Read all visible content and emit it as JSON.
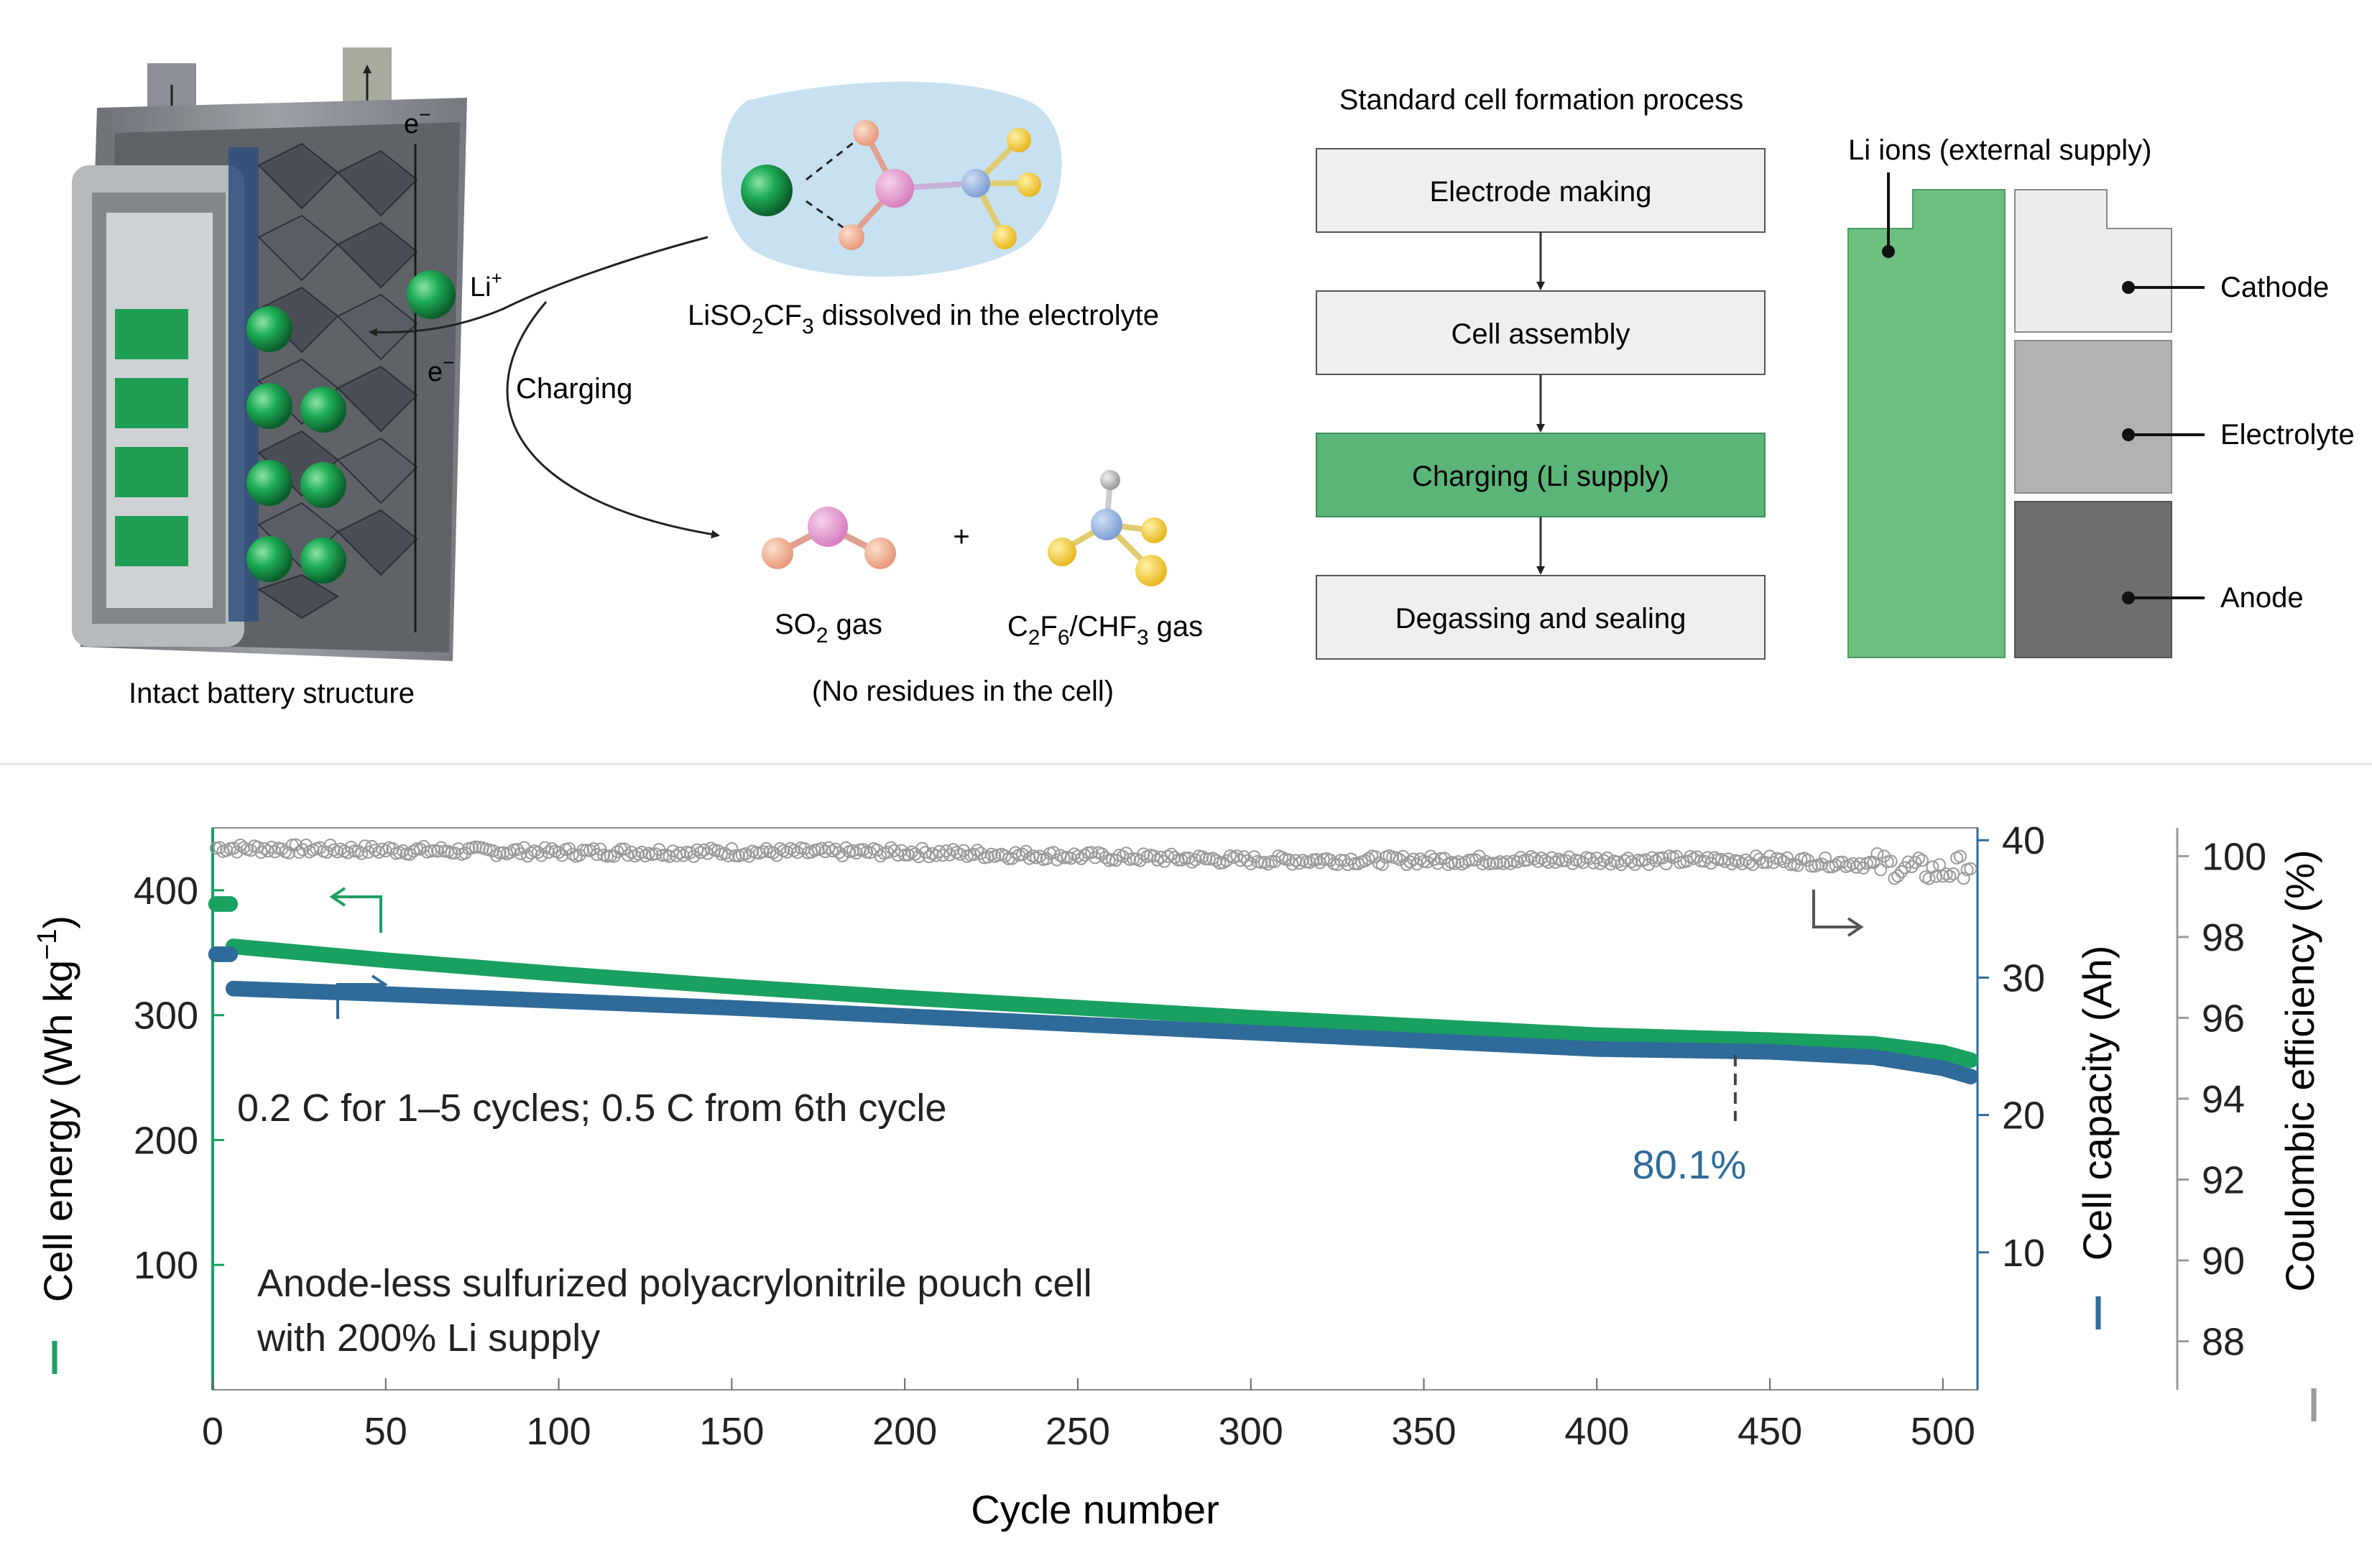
{
  "schematic": {
    "battery_caption": "Intact battery structure",
    "electron_top": "e",
    "electron_bottom": "e",
    "electron_sup": "−",
    "li_label": "Li",
    "li_sup": "+",
    "charging_label": "Charging",
    "salt_caption": {
      "p1": "LiSO",
      "s1": "2",
      "p2": "CF",
      "s2": "3",
      "p3": " dissolved in the electrolyte"
    },
    "plus_sign": "+",
    "so2_caption": {
      "p1": "SO",
      "s1": "2",
      "p2": " gas"
    },
    "cf_caption": {
      "p1": "C",
      "s1": "2",
      "p2": "F",
      "s2": "6",
      "p3": "/CHF",
      "s3": "3",
      "p4": " gas"
    },
    "no_residue_caption": "(No residues in the cell)"
  },
  "flowchart": {
    "title": "Standard cell formation process",
    "steps": [
      "Electrode making",
      "Cell assembly",
      "Charging (Li supply)",
      "Degassing and sealing"
    ],
    "highlight_color": "#5bb578"
  },
  "cell_stack": {
    "supply_label": "Li ions (external supply)",
    "layers": [
      "Cathode",
      "Electrolyte",
      "Anode"
    ],
    "colors": {
      "lithium": "#6cc07f",
      "cathode": "#ececec",
      "electrolyte": "#b2b2b2",
      "anode": "#6e6e6e"
    }
  },
  "chart_data": {
    "type": "scatter",
    "xlabel": "Cycle number",
    "x_ticks": [
      0,
      50,
      100,
      150,
      200,
      250,
      300,
      350,
      400,
      450,
      500
    ],
    "xlim": [
      0,
      510
    ],
    "axes": {
      "energy": {
        "label": "Cell energy (Wh kg",
        "label_sup": "−1",
        "label_end": ")",
        "ylim": [
          0,
          450
        ],
        "ticks": [
          100,
          200,
          300,
          400
        ],
        "color": "#1aa060"
      },
      "capacity": {
        "label": "Cell capacity (Ah)",
        "ylim": [
          0,
          40.9
        ],
        "ticks": [
          10,
          20,
          30,
          40
        ],
        "color": "#2e6b9a"
      },
      "ce": {
        "label": "Coulombic efficiency (%)",
        "ylim": [
          86.8,
          100.7
        ],
        "ticks": [
          88,
          90,
          92,
          94,
          96,
          98,
          100
        ],
        "color": "#9a9a9a"
      }
    },
    "series": [
      {
        "name": "Cell energy",
        "axis": "energy",
        "color": "#1aa060",
        "x": [
          1,
          5,
          6,
          50,
          100,
          150,
          200,
          250,
          300,
          350,
          400,
          450,
          480,
          500,
          508
        ],
        "y": [
          389,
          389,
          355,
          344,
          333,
          323,
          314,
          306,
          298,
          291,
          284,
          280,
          277,
          270,
          264
        ]
      },
      {
        "name": "Cell capacity",
        "axis": "capacity",
        "color": "#2e6b9a",
        "x": [
          1,
          5,
          6,
          50,
          100,
          150,
          200,
          250,
          300,
          350,
          400,
          450,
          480,
          500,
          508
        ],
        "y": [
          31.7,
          31.7,
          29.2,
          28.8,
          28.3,
          27.8,
          27.2,
          26.6,
          26.0,
          25.4,
          24.8,
          24.6,
          24.2,
          23.4,
          22.8
        ]
      },
      {
        "name": "Coulombic efficiency",
        "axis": "ce",
        "color": "#9a9a9a",
        "x": [
          1,
          100,
          200,
          300,
          400,
          450,
          480,
          500,
          508
        ],
        "y": [
          100.2,
          100.1,
          100.1,
          99.9,
          99.9,
          99.9,
          99.8,
          99.6,
          99.8
        ]
      }
    ],
    "annotations": {
      "rate_note": "0.2 C for 1–5 cycles; 0.5 C from 6th cycle",
      "cell_note_line1": "Anode-less sulfurized polyacrylonitrile pouch cell",
      "cell_note_line2": "with 200% Li supply",
      "retention": "80.1%",
      "retention_cycle": 440
    }
  }
}
